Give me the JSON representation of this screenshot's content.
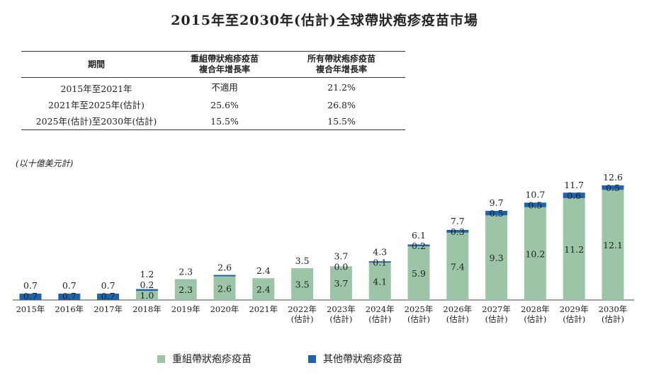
{
  "title": "2015年至2030年(估計)全球帶狀疱疹疫苗市場",
  "table": {
    "header_lines": [
      [
        "期間"
      ],
      [
        "重組帶狀疱疹疫苗",
        "複合年增長率"
      ],
      [
        "所有帶狀疱疹疫苗",
        "複合年增長率"
      ]
    ],
    "rows": [
      [
        "2015年至2021年",
        "不適用",
        "21.2%"
      ],
      [
        "2021年至2025年(估計)",
        "25.6%",
        "26.8%"
      ],
      [
        "2025年(估計)至2030年(估計)",
        "15.5%",
        "15.5%"
      ]
    ]
  },
  "chart_data": {
    "type": "bar",
    "stacked": true,
    "unit_label": "(以十億美元計)",
    "categories": [
      "2015年",
      "2016年",
      "2017年",
      "2018年",
      "2019年",
      "2020年",
      "2021年",
      "2022年\n(估計)",
      "2023年\n(估計)",
      "2024年\n(估計)",
      "2025年\n(估計)",
      "2026年\n(估計)",
      "2027年\n(估計)",
      "2028年\n(估計)",
      "2029年\n(估計)",
      "2030年\n(估計)"
    ],
    "series": [
      {
        "name": "重組帶狀疱疹疫苗",
        "color": "#9cc5a8",
        "values": [
          0,
          0,
          0,
          1.0,
          2.3,
          2.6,
          2.4,
          3.5,
          3.7,
          4.1,
          5.9,
          7.4,
          9.3,
          10.2,
          11.2,
          12.1
        ],
        "labels": [
          null,
          null,
          null,
          "1.0",
          "2.3",
          "2.6",
          "2.4",
          "3.5",
          "3.7",
          "4.1",
          "5.9",
          "7.4",
          "9.3",
          "10.2",
          "11.2",
          "12.1"
        ]
      },
      {
        "name": "其他帶狀疱疹疫苗",
        "color": "#1f63ad",
        "values": [
          0.7,
          0.7,
          0.7,
          0.2,
          0,
          0.05,
          0,
          0,
          0,
          0.1,
          0.2,
          0.3,
          0.5,
          0.5,
          0.6,
          0.5
        ],
        "labels": [
          "0.7",
          "0.7",
          "0.7",
          "0.2",
          null,
          null,
          null,
          null,
          "0.0",
          "0.1",
          "0.2",
          "0.3",
          "0.5",
          "0.5",
          "0.6",
          "0.5"
        ]
      }
    ],
    "totals": [
      "0.7",
      "0.7",
      "0.7",
      "1.2",
      "2.3",
      "2.6",
      "2.4",
      "3.5",
      "3.7",
      "4.3",
      "6.1",
      "7.7",
      "9.7",
      "10.7",
      "11.7",
      "12.6"
    ],
    "ylim": [
      0,
      13
    ],
    "grid": false,
    "legend_position": "bottom"
  }
}
